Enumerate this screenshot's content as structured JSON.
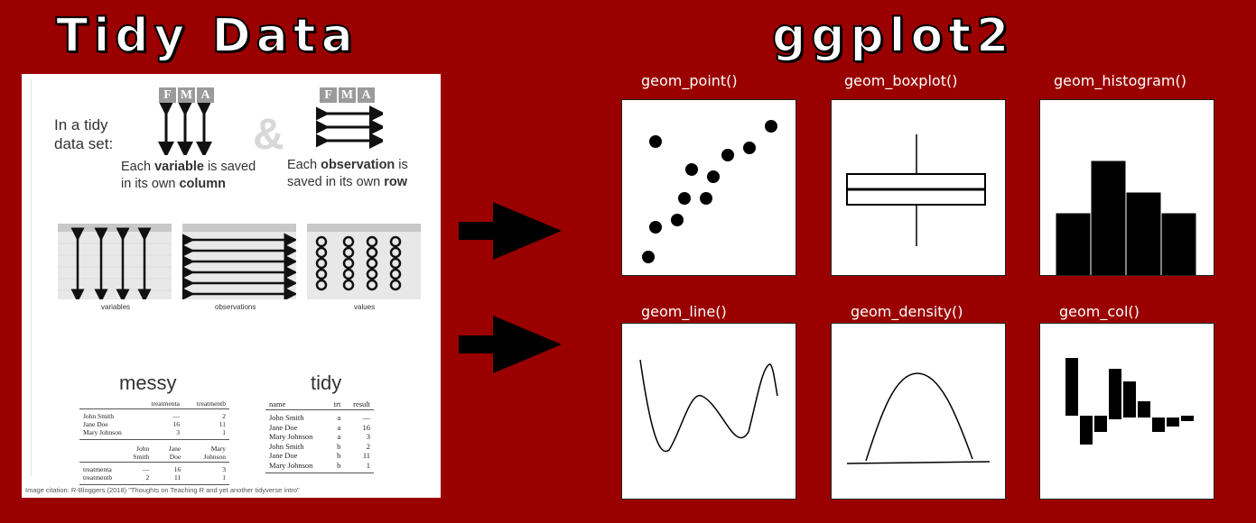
{
  "titles": {
    "left": "Tidy Data",
    "right": "ggplot2"
  },
  "tidy_panel": {
    "intro": "In a tidy data set:",
    "fma_letters": [
      "F",
      "M",
      "A"
    ],
    "variable_caption": {
      "pre": "Each ",
      "bold": "variable",
      "mid": " is saved in its own ",
      "bold2": "column"
    },
    "observation_caption": {
      "pre": "Each ",
      "bold": "observation",
      "mid": " is saved in its own ",
      "bold2": "row"
    },
    "ampersand": "&",
    "sub_labels": [
      "variables",
      "observations",
      "values"
    ],
    "messy_heading": "messy",
    "tidy_heading": "tidy",
    "messy_table_1": {
      "columns": [
        "",
        "treatmenta",
        "treatmentb"
      ],
      "rows": [
        [
          "John Smith",
          "—",
          "2"
        ],
        [
          "Jane Doe",
          "16",
          "11"
        ],
        [
          "Mary Johnson",
          "3",
          "1"
        ]
      ]
    },
    "messy_table_2": {
      "columns": [
        "",
        "John Smith",
        "Jane Doe",
        "Mary Johnson"
      ],
      "rows": [
        [
          "treatmenta",
          "—",
          "16",
          "3"
        ],
        [
          "treatmentb",
          "2",
          "11",
          "1"
        ]
      ]
    },
    "tidy_table": {
      "columns": [
        "name",
        "trt",
        "result"
      ],
      "rows": [
        [
          "John Smith",
          "a",
          "—"
        ],
        [
          "Jane Doe",
          "a",
          "16"
        ],
        [
          "Mary Johnson",
          "a",
          "3"
        ],
        [
          "John Smith",
          "b",
          "2"
        ],
        [
          "Jane Doe",
          "b",
          "11"
        ],
        [
          "Mary Johnson",
          "b",
          "1"
        ]
      ]
    },
    "citation": "Image citation: R-Bloggers (2018) \"Thoughts on Teaching R and yet another tidyverse intro\""
  },
  "plots": [
    {
      "label": "geom_point()"
    },
    {
      "label": "geom_boxplot()"
    },
    {
      "label": "geom_histogram()"
    },
    {
      "label": "geom_line()"
    },
    {
      "label": "geom_density()"
    },
    {
      "label": "geom_col()"
    }
  ],
  "icons": {
    "arrow": "right-arrow-icon"
  },
  "colors": {
    "background": "#9a0000",
    "text": "#ffffff",
    "panel": "#ffffff",
    "ink": "#000000"
  }
}
